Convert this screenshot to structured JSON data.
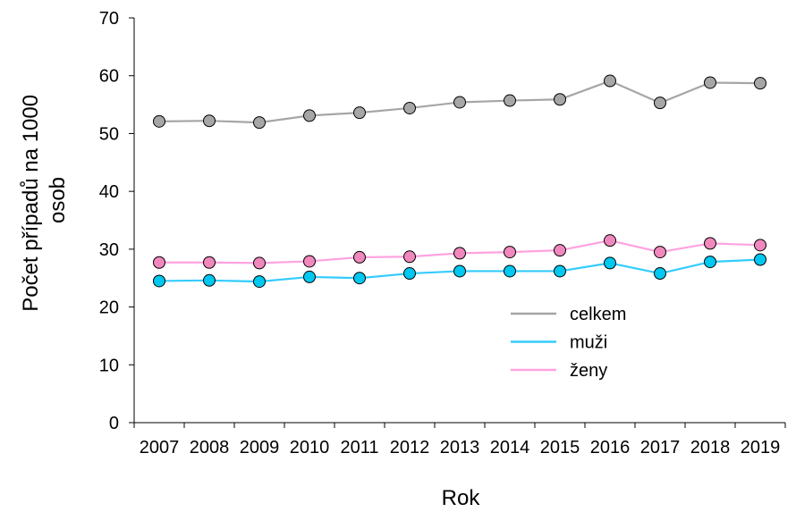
{
  "chart_data": {
    "type": "line",
    "title": "",
    "xlabel": "Rok",
    "ylabel_lines": [
      "Počet případů na 1000",
      "osob"
    ],
    "x": [
      "2007",
      "2008",
      "2009",
      "2010",
      "2011",
      "2012",
      "2013",
      "2014",
      "2015",
      "2016",
      "2017",
      "2018",
      "2019"
    ],
    "ylim": [
      0,
      70
    ],
    "yticks": [
      "0",
      "10",
      "20",
      "30",
      "40",
      "50",
      "60",
      "70"
    ],
    "grid": false,
    "legend_position": "right",
    "series": [
      {
        "name": "celkem",
        "line_color": "#A6A6A6",
        "marker_color": "#A6A6A6",
        "values": [
          52.1,
          52.2,
          51.9,
          53.1,
          53.6,
          54.4,
          55.4,
          55.7,
          55.9,
          59.1,
          55.3,
          58.8,
          58.7
        ]
      },
      {
        "name": "muži",
        "line_color": "#33CCFF",
        "marker_color": "#00C8F0",
        "values": [
          24.5,
          24.6,
          24.4,
          25.2,
          25.0,
          25.8,
          26.2,
          26.2,
          26.2,
          27.6,
          25.8,
          27.8,
          28.2
        ]
      },
      {
        "name": "ženy",
        "line_color": "#FFA3E0",
        "marker_color": "#F088BD",
        "values": [
          27.7,
          27.7,
          27.6,
          27.9,
          28.6,
          28.7,
          29.3,
          29.5,
          29.8,
          31.5,
          29.5,
          31.0,
          30.7
        ]
      }
    ]
  }
}
